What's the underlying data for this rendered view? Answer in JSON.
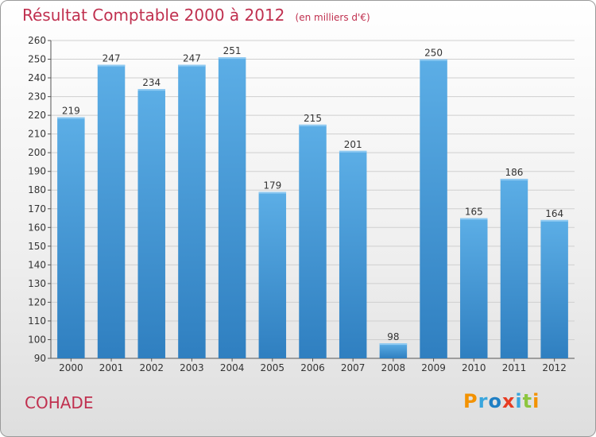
{
  "header": {
    "title": "Résultat Comptable 2000 à 2012",
    "subtitle": "(en milliers d'€)"
  },
  "location": "COHADE",
  "logo": {
    "letters": [
      "P",
      "r",
      "o",
      "x",
      "i",
      "t",
      "i"
    ],
    "colors": [
      "#f39200",
      "#3aa6dd",
      "#1f7fc4",
      "#e73c22",
      "#3aa6dd",
      "#8dc63f",
      "#f39200"
    ]
  },
  "colors": {
    "accent": "#c0304f",
    "bar_top": "#5caee6",
    "bar_bottom": "#2f7fc0",
    "grid": "#cfcfcf"
  },
  "chart_data": {
    "type": "bar",
    "title": "Résultat Comptable 2000 à 2012",
    "subtitle": "(en milliers d'€)",
    "categories": [
      "2000",
      "2001",
      "2002",
      "2003",
      "2004",
      "2005",
      "2006",
      "2007",
      "2008",
      "2009",
      "2010",
      "2011",
      "2012"
    ],
    "values": [
      219,
      247,
      234,
      247,
      251,
      179,
      215,
      201,
      98,
      250,
      165,
      186,
      164
    ],
    "ylim": [
      90,
      260
    ],
    "yticks": [
      90,
      100,
      110,
      120,
      130,
      140,
      150,
      160,
      170,
      180,
      190,
      200,
      210,
      220,
      230,
      240,
      250,
      260
    ],
    "grid": true,
    "xlabel": "",
    "ylabel": ""
  }
}
